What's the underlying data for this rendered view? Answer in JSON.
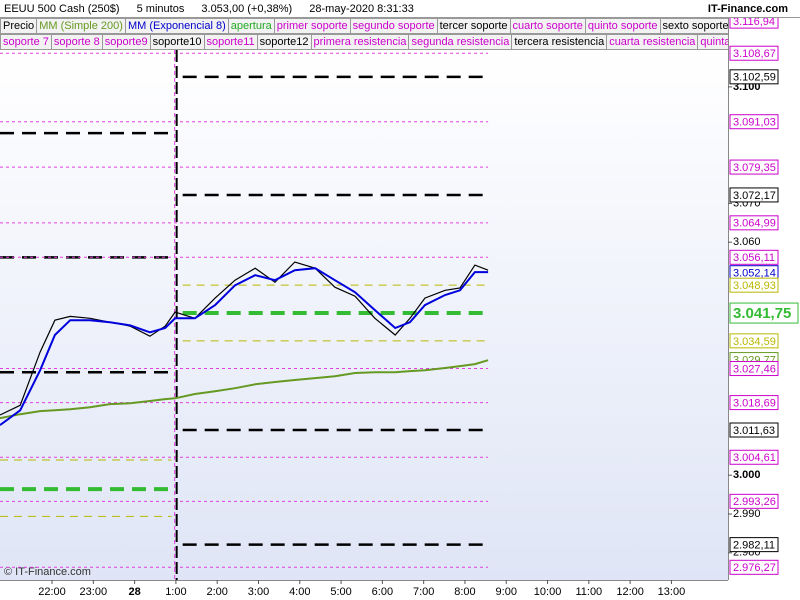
{
  "chart_data": {
    "type": "line",
    "header": [
      "EEUU 500 Cash (250$)",
      "5 minutos",
      "3.053,00 (+0,38%)",
      "28-may-2020 8:31:33"
    ],
    "brand": "IT-Finance.com",
    "watermark": "© IT-Finance.com",
    "legend": [
      [
        {
          "name": "Precio",
          "color": "#000000"
        },
        {
          "name": "MM (Simple 200)",
          "color": "#669922"
        },
        {
          "name": "MM (Exponencial 8)",
          "color": "#0000cc"
        },
        {
          "name": "apertura",
          "color": "#22aa22"
        },
        {
          "name": "primer soporte",
          "color": "#cc00cc"
        },
        {
          "name": "segundo soporte",
          "color": "#cc00cc"
        },
        {
          "name": "tercer soporte",
          "color": "#000000"
        },
        {
          "name": "cuarto soporte",
          "color": "#cc00cc"
        },
        {
          "name": "quinto soporte",
          "color": "#cc00cc"
        },
        {
          "name": "sexto soporte",
          "color": "#000000"
        }
      ],
      [
        {
          "name": "soporte 7",
          "color": "#cc00cc"
        },
        {
          "name": "soporte 8",
          "color": "#cc00cc"
        },
        {
          "name": "soporte9",
          "color": "#cc00cc"
        },
        {
          "name": "soporte10",
          "color": "#000000"
        },
        {
          "name": "soporte11",
          "color": "#cc00cc"
        },
        {
          "name": "soporte12",
          "color": "#000000"
        },
        {
          "name": "primera resistencia",
          "color": "#cc00cc"
        },
        {
          "name": "segunda resistencia",
          "color": "#cc00cc"
        },
        {
          "name": "tercera resistencia",
          "color": "#000000"
        },
        {
          "name": "cuarta resistencia",
          "color": "#cc00cc"
        },
        {
          "name": "quinta resistencia",
          "color": "#cc00cc"
        }
      ]
    ],
    "xlim": [
      20.74,
      38.37
    ],
    "xticks": [
      {
        "value": 22,
        "label": "22:00"
      },
      {
        "value": 23,
        "label": "23:00"
      },
      {
        "value": 24,
        "label": "28"
      },
      {
        "value": 25,
        "label": "1:00"
      },
      {
        "value": 26,
        "label": "2:00"
      },
      {
        "value": 27,
        "label": "3:00"
      },
      {
        "value": 28,
        "label": "4:00"
      },
      {
        "value": 29,
        "label": "5:00"
      },
      {
        "value": 30,
        "label": "6:00"
      },
      {
        "value": 31,
        "label": "7:00"
      },
      {
        "value": 32,
        "label": "8:00"
      },
      {
        "value": 33,
        "label": "9:00"
      },
      {
        "value": 34,
        "label": "10:00"
      },
      {
        "value": 35,
        "label": "11:00"
      },
      {
        "value": 36,
        "label": "12:00"
      },
      {
        "value": 37,
        "label": "13:00"
      }
    ],
    "ylim": [
      2973,
      3109.5
    ],
    "yticks": [
      {
        "value": 3100,
        "label": "3.100"
      },
      {
        "value": 3070,
        "label": "3.070"
      },
      {
        "value": 3060,
        "label": "3.060"
      },
      {
        "value": 3000,
        "label": "3.000"
      },
      {
        "value": 2990,
        "label": "2.990"
      },
      {
        "value": 2980,
        "label": "2.980"
      }
    ],
    "session_break": 24.97,
    "x": [
      20.74,
      21.23,
      21.71,
      22.07,
      22.44,
      22.92,
      23.4,
      23.89,
      24.37,
      24.74,
      24.98,
      25.46,
      25.95,
      26.43,
      26.92,
      27.4,
      27.88,
      28.37,
      28.85,
      29.34,
      29.82,
      30.31,
      30.67,
      31.03,
      31.52,
      31.88,
      32.24,
      32.56
    ],
    "series": [
      {
        "name": "Precio",
        "color": "#000000",
        "values": [
          3015.5,
          3018.0,
          3031.7,
          3039.9,
          3040.9,
          3040.4,
          3039.4,
          3038.4,
          3035.8,
          3038.4,
          3042.0,
          3040.4,
          3045.6,
          3050.2,
          3053.3,
          3049.7,
          3054.9,
          3053.3,
          3048.4,
          3046.1,
          3040.4,
          3036.1,
          3040.4,
          3045.6,
          3047.6,
          3048.2,
          3054.1,
          3052.8
        ]
      },
      {
        "name": "MM (Simple 200)",
        "color": "#669922",
        "values": [
          3014.7,
          3015.7,
          3016.5,
          3016.7,
          3017.0,
          3017.5,
          3018.3,
          3018.5,
          3019.1,
          3019.6,
          3019.8,
          3020.9,
          3021.6,
          3022.4,
          3023.4,
          3024.0,
          3024.5,
          3025.0,
          3025.5,
          3026.3,
          3026.5,
          3026.5,
          3026.8,
          3027.0,
          3027.6,
          3028.1,
          3028.6,
          3029.6
        ]
      },
      {
        "name": "MM (Exponencial 8)",
        "color": "#0000dd",
        "values": [
          3012.9,
          3016.7,
          3027.0,
          3036.1,
          3039.9,
          3039.9,
          3039.4,
          3038.6,
          3036.8,
          3037.9,
          3040.4,
          3040.4,
          3043.8,
          3048.9,
          3051.5,
          3050.2,
          3052.8,
          3053.3,
          3050.2,
          3047.1,
          3042.5,
          3037.9,
          3039.4,
          3043.8,
          3046.4,
          3047.6,
          3052.3,
          3052.3
        ]
      }
    ],
    "levels": [
      {
        "value": 3116.94,
        "label": "3.116,94",
        "color": "#cc00cc",
        "style": "dot"
      },
      {
        "value": 3108.67,
        "label": "3.108,67",
        "color": "#cc00cc",
        "style": "dot"
      },
      {
        "value": 3102.59,
        "label": "3.102,59",
        "color": "#000000",
        "style": "dash"
      },
      {
        "value": 3091.03,
        "label": "3.091,03",
        "color": "#cc00cc",
        "style": "dot"
      },
      {
        "value": 3079.35,
        "label": "3.079,35",
        "color": "#cc00cc",
        "style": "dot"
      },
      {
        "value": 3072.17,
        "label": "3.072,17",
        "color": "#000000",
        "style": "dash"
      },
      {
        "value": 3064.99,
        "label": "3.064,99",
        "color": "#cc00cc",
        "style": "dot"
      },
      {
        "value": 3056.11,
        "label": "3.056,11",
        "color": "#cc00cc",
        "style": "dot"
      },
      {
        "value": 3052.14,
        "label": "3.052,14",
        "color": "#0000cc",
        "style": "none"
      },
      {
        "value": 3048.93,
        "label": "3.048,93",
        "color": "#b8b800",
        "style": "thin"
      },
      {
        "value": 3041.75,
        "label": "3.041,75",
        "color": "#33bb33",
        "style": "thick"
      },
      {
        "value": 3034.59,
        "label": "3.034,59",
        "color": "#b8b800",
        "style": "thin"
      },
      {
        "value": 3029.77,
        "label": "3.029,77",
        "color": "#669922",
        "style": "none"
      },
      {
        "value": 3027.46,
        "label": "3.027,46",
        "color": "#cc00cc",
        "style": "dot"
      },
      {
        "value": 3018.69,
        "label": "3.018,69",
        "color": "#cc00cc",
        "style": "dot"
      },
      {
        "value": 3011.63,
        "label": "3.011,63",
        "color": "#000000",
        "style": "dash"
      },
      {
        "value": 3004.61,
        "label": "3.004,61",
        "color": "#cc00cc",
        "style": "dot"
      },
      {
        "value": 2993.26,
        "label": "2.993,26",
        "color": "#cc00cc",
        "style": "dot"
      },
      {
        "value": 2982.11,
        "label": "2.982,11",
        "color": "#000000",
        "style": "dash"
      },
      {
        "value": 2976.27,
        "label": "2.976,27",
        "color": "#cc00cc",
        "style": "dot"
      }
    ],
    "previous_levels": [
      {
        "value": 3088.1,
        "color": "#000000",
        "style": "dash"
      },
      {
        "value": 3056.1,
        "color": "#000000",
        "style": "dash"
      },
      {
        "value": 3026.5,
        "color": "#000000",
        "style": "dash"
      },
      {
        "value": 3003.9,
        "color": "#b8b800",
        "style": "thin"
      },
      {
        "value": 2996.4,
        "color": "#33bb33",
        "style": "thick"
      },
      {
        "value": 2989.4,
        "color": "#b8b800",
        "style": "thin"
      }
    ]
  }
}
